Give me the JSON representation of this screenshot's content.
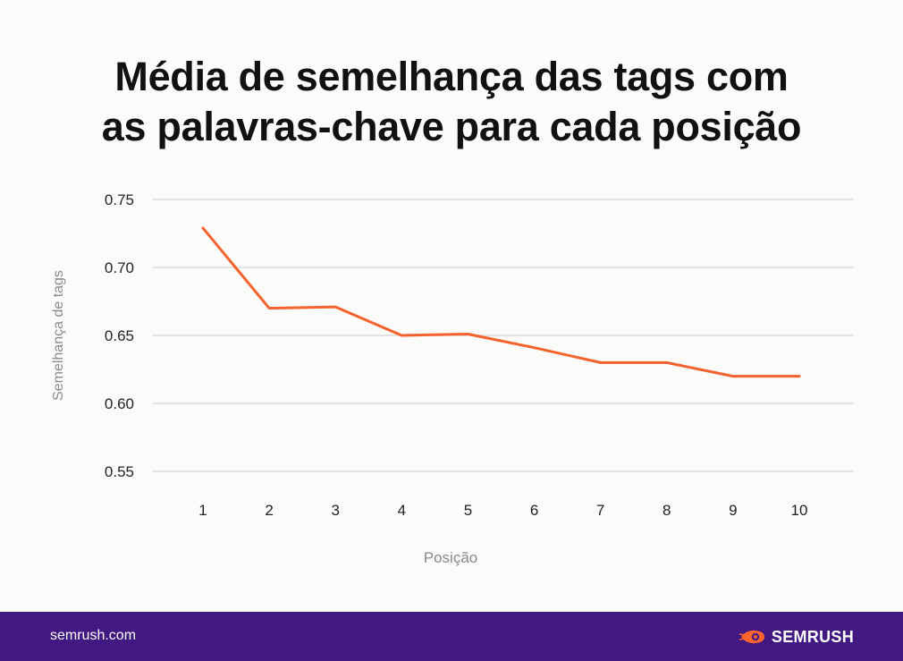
{
  "chart_data": {
    "type": "line",
    "title": [
      "Média de semelhança das tags com",
      "as palavras-chave para cada posição"
    ],
    "xlabel": "Posição",
    "ylabel": "Semelhança de tags",
    "categories": [
      "1",
      "2",
      "3",
      "4",
      "5",
      "6",
      "7",
      "8",
      "9",
      "10"
    ],
    "series": [
      {
        "values": [
          0.729,
          0.67,
          0.671,
          0.65,
          0.651,
          0.641,
          0.63,
          0.63,
          0.62,
          0.62
        ]
      }
    ],
    "yticks": [
      "0.75",
      "0.70",
      "0.65",
      "0.60",
      "0.55"
    ],
    "ylim": [
      0.55,
      0.75
    ],
    "grid": true,
    "line_color": "#f5622d"
  },
  "footer": {
    "url": "semrush.com",
    "logo_text": "SEMRUSH",
    "logo_icon": "semrush-fireball-icon",
    "background": "#421983"
  }
}
